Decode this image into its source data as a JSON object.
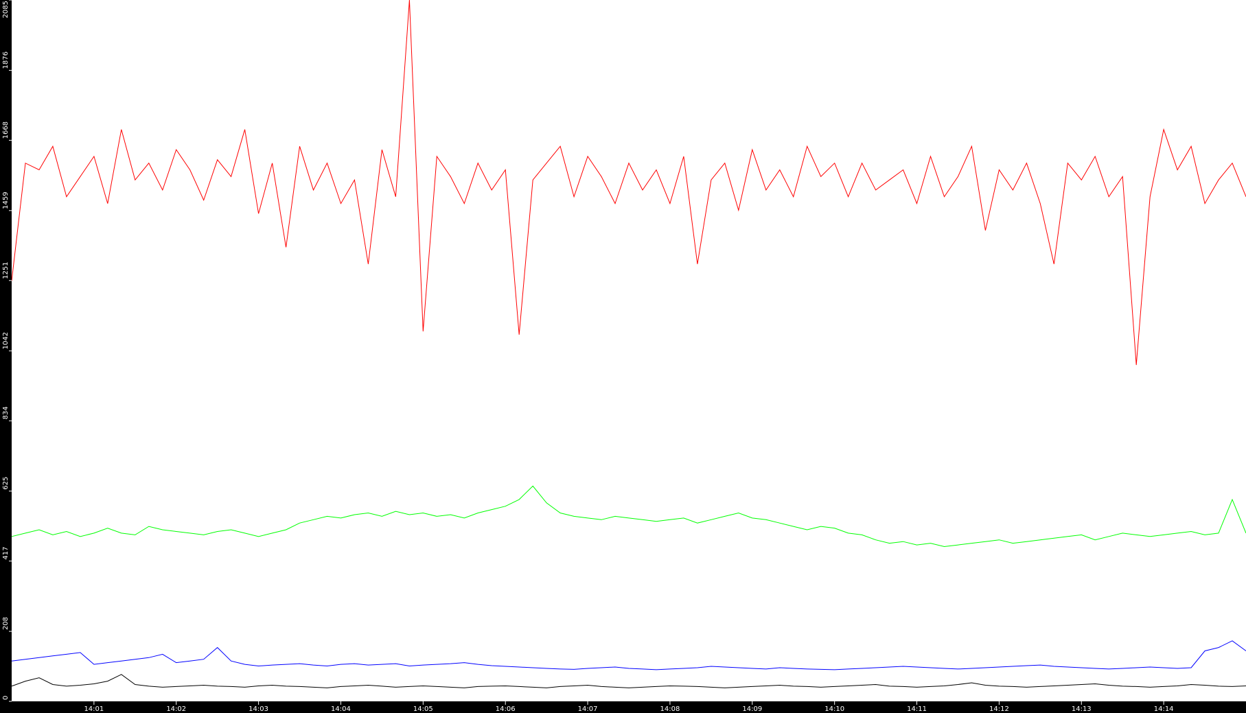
{
  "chart_data": {
    "type": "line",
    "title": "",
    "xlabel": "",
    "ylabel": "",
    "x_start": "14:00:00",
    "x_step_seconds": 10,
    "x_ticks": [
      "14:01",
      "14:02",
      "14:03",
      "14:04",
      "14:05",
      "14:06",
      "14:07",
      "14:08",
      "14:09",
      "14:10",
      "14:11",
      "14:12",
      "14:13",
      "14:14"
    ],
    "xlim": [
      "14:00:00",
      "14:15:00"
    ],
    "y_ticks": [
      "0",
      "208",
      "417",
      "625",
      "834",
      "1042",
      "1251",
      "1459",
      "1668",
      "1876",
      "2085"
    ],
    "ylim": [
      0,
      2085
    ],
    "grid": false,
    "axis_background": "#000000",
    "axis_text_color": "#ffffff",
    "series": [
      {
        "color": "#ff0000",
        "values": [
          1250,
          1600,
          1580,
          1650,
          1500,
          1560,
          1620,
          1480,
          1700,
          1550,
          1600,
          1520,
          1640,
          1580,
          1490,
          1610,
          1560,
          1700,
          1450,
          1600,
          1350,
          1650,
          1520,
          1600,
          1480,
          1550,
          1300,
          1640,
          1500,
          2085,
          1100,
          1620,
          1560,
          1480,
          1600,
          1520,
          1580,
          1090,
          1550,
          1600,
          1650,
          1500,
          1620,
          1560,
          1480,
          1600,
          1520,
          1580,
          1480,
          1620,
          1300,
          1550,
          1600,
          1460,
          1640,
          1520,
          1580,
          1500,
          1650,
          1560,
          1600,
          1500,
          1600,
          1520,
          1550,
          1580,
          1480,
          1620,
          1500,
          1560,
          1650,
          1400,
          1580,
          1520,
          1600,
          1480,
          1300,
          1600,
          1550,
          1620,
          1500,
          1560,
          1000,
          1500,
          1700,
          1580,
          1650,
          1480,
          1550,
          1600,
          1500
        ]
      },
      {
        "color": "#00ff00",
        "values": [
          490,
          500,
          510,
          495,
          505,
          490,
          500,
          515,
          500,
          495,
          520,
          510,
          505,
          500,
          495,
          505,
          510,
          500,
          490,
          500,
          510,
          530,
          540,
          550,
          545,
          555,
          560,
          550,
          565,
          555,
          560,
          550,
          555,
          545,
          560,
          570,
          580,
          600,
          640,
          590,
          560,
          550,
          545,
          540,
          550,
          545,
          540,
          535,
          540,
          545,
          530,
          540,
          550,
          560,
          545,
          540,
          530,
          520,
          510,
          520,
          515,
          500,
          495,
          480,
          470,
          475,
          465,
          470,
          460,
          465,
          470,
          475,
          480,
          470,
          475,
          480,
          485,
          490,
          495,
          480,
          490,
          500,
          495,
          490,
          495,
          500,
          505,
          495,
          500,
          600,
          500
        ]
      },
      {
        "color": "#0000ff",
        "values": [
          120,
          125,
          130,
          135,
          140,
          145,
          110,
          115,
          120,
          125,
          130,
          140,
          115,
          120,
          125,
          160,
          120,
          110,
          105,
          108,
          110,
          112,
          108,
          105,
          110,
          112,
          108,
          110,
          112,
          105,
          108,
          110,
          112,
          115,
          110,
          106,
          104,
          102,
          100,
          98,
          96,
          95,
          98,
          100,
          102,
          98,
          96,
          94,
          96,
          98,
          100,
          104,
          102,
          100,
          98,
          96,
          100,
          98,
          96,
          95,
          94,
          96,
          98,
          100,
          102,
          104,
          102,
          100,
          98,
          96,
          98,
          100,
          102,
          104,
          106,
          108,
          104,
          102,
          100,
          98,
          96,
          98,
          100,
          102,
          100,
          98,
          100,
          150,
          160,
          180,
          150
        ]
      },
      {
        "color": "#000000",
        "values": [
          45,
          60,
          70,
          50,
          45,
          48,
          52,
          60,
          80,
          50,
          45,
          42,
          44,
          46,
          48,
          45,
          44,
          42,
          46,
          48,
          45,
          44,
          42,
          40,
          44,
          46,
          48,
          45,
          42,
          44,
          46,
          44,
          42,
          40,
          44,
          45,
          46,
          44,
          42,
          40,
          44,
          46,
          48,
          44,
          42,
          40,
          42,
          44,
          46,
          45,
          44,
          42,
          40,
          42,
          44,
          46,
          48,
          45,
          44,
          42,
          44,
          46,
          48,
          50,
          45,
          44,
          42,
          44,
          46,
          50,
          55,
          48,
          45,
          44,
          42,
          44,
          46,
          48,
          50,
          52,
          48,
          45,
          44,
          42,
          44,
          46,
          50,
          48,
          45,
          44,
          46
        ]
      }
    ]
  }
}
